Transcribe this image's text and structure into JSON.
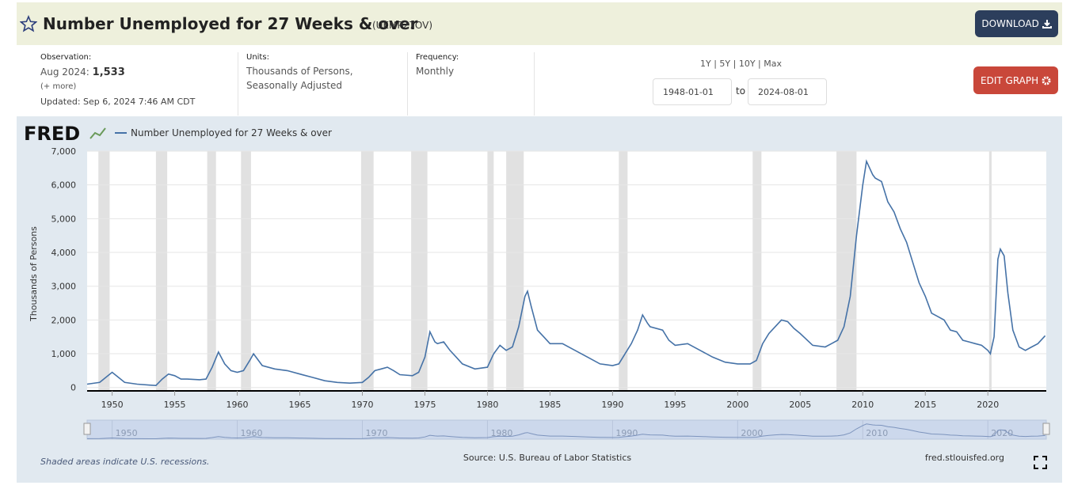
{
  "header": {
    "title": "Number Unemployed for 27 Weeks & over",
    "series_id": "(UEMP27OV)",
    "download": "DOWNLOAD"
  },
  "observation": {
    "label": "Observation:",
    "date": "Aug 2024:",
    "value": "1,533",
    "more": "(+ more)",
    "updated": "Updated: Sep 6, 2024 7:46 AM CDT"
  },
  "units": {
    "label": "Units:",
    "lines": [
      "Thousands of Persons,",
      "Seasonally Adjusted"
    ]
  },
  "frequency": {
    "label": "Frequency:",
    "value": "Monthly"
  },
  "range": {
    "presets": "1Y | 5Y | 10Y | Max",
    "start": "1948-01-01",
    "to": "to",
    "end": "2024-08-01"
  },
  "edit_graph": "EDIT GRAPH",
  "chart_data": {
    "type": "line",
    "logo": "FRED",
    "ylabel": "Thousands of Persons",
    "x": [
      1948,
      1949,
      1949.5,
      1950,
      1950.5,
      1951,
      1952,
      1953,
      1953.5,
      1954,
      1954.5,
      1955,
      1955.5,
      1956,
      1957,
      1957.5,
      1958,
      1958.5,
      1959,
      1959.5,
      1960,
      1960.5,
      1961,
      1961.3,
      1961.7,
      1962,
      1963,
      1964,
      1965,
      1966,
      1967,
      1968,
      1969,
      1970,
      1970.5,
      1971,
      1971.5,
      1972,
      1972.5,
      1973,
      1974,
      1974.5,
      1975,
      1975.4,
      1975.8,
      1976,
      1976.5,
      1977,
      1977.5,
      1978,
      1979,
      1980,
      1980.5,
      1981,
      1981.5,
      1982,
      1982.5,
      1983,
      1983.2,
      1983.5,
      1984,
      1984.5,
      1985,
      1986,
      1987,
      1988,
      1989,
      1990,
      1990.5,
      1991,
      1991.5,
      1992,
      1992.4,
      1992.8,
      1993,
      1994,
      1994.5,
      1995,
      1996,
      1997,
      1998,
      1999,
      2000,
      2001,
      2001.5,
      2002,
      2002.5,
      2003,
      2003.5,
      2004,
      2004.5,
      2005,
      2006,
      2007,
      2007.5,
      2008,
      2008.5,
      2009,
      2009.5,
      2010,
      2010.3,
      2010.8,
      2011,
      2011.5,
      2012,
      2012.5,
      2013,
      2013.5,
      2014,
      2014.5,
      2015,
      2015.5,
      2016,
      2016.5,
      2017,
      2017.5,
      2018,
      2018.5,
      2019,
      2019.5,
      2020,
      2020.2,
      2020.5,
      2020.8,
      2021,
      2021.3,
      2021.6,
      2022,
      2022.5,
      2023,
      2023.5,
      2024,
      2024.58
    ],
    "series": [
      {
        "name": "Number Unemployed for 27 Weeks & over",
        "color": "#4572a7",
        "values": [
          100,
          150,
          300,
          450,
          300,
          150,
          100,
          70,
          60,
          250,
          400,
          350,
          250,
          250,
          230,
          250,
          600,
          1050,
          700,
          500,
          450,
          500,
          800,
          1000,
          800,
          650,
          550,
          500,
          400,
          300,
          200,
          150,
          130,
          150,
          300,
          500,
          550,
          600,
          500,
          380,
          350,
          450,
          900,
          1650,
          1350,
          1300,
          1350,
          1100,
          900,
          700,
          550,
          600,
          1000,
          1250,
          1100,
          1200,
          1800,
          2700,
          2850,
          2400,
          1700,
          1500,
          1300,
          1300,
          1100,
          900,
          700,
          650,
          700,
          1000,
          1300,
          1700,
          2150,
          1900,
          1800,
          1700,
          1400,
          1250,
          1300,
          1100,
          900,
          750,
          700,
          700,
          800,
          1300,
          1600,
          1800,
          2000,
          1950,
          1750,
          1600,
          1250,
          1200,
          1300,
          1400,
          1800,
          2700,
          4500,
          6000,
          6700,
          6300,
          6200,
          6100,
          5500,
          5200,
          4700,
          4300,
          3700,
          3100,
          2700,
          2200,
          2100,
          2000,
          1700,
          1650,
          1400,
          1350,
          1300,
          1250,
          1100,
          1000,
          1500,
          3800,
          4100,
          3900,
          2800,
          1700,
          1200,
          1100,
          1200,
          1300,
          1533
        ]
      }
    ],
    "xlim": [
      1948,
      2024.67
    ],
    "xticks": [
      1950,
      1955,
      1960,
      1965,
      1970,
      1975,
      1980,
      1985,
      1990,
      1995,
      2000,
      2005,
      2010,
      2015,
      2020
    ],
    "ylim": [
      -100,
      7000
    ],
    "yticks": [
      0,
      {
        "value": 1000,
        "label": "1,000"
      },
      {
        "value": 2000,
        "label": "2,000"
      },
      {
        "value": 3000,
        "label": "3,000"
      },
      {
        "value": 4000,
        "label": "4,000"
      },
      {
        "value": 5000,
        "label": "5,000"
      },
      {
        "value": 6000,
        "label": "6,000"
      },
      {
        "value": 7000,
        "label": "7,000"
      }
    ],
    "grid": true,
    "recession_color": "#e1e1e1",
    "recessions": [
      [
        1948.9,
        1949.8
      ],
      [
        1953.5,
        1954.4
      ],
      [
        1957.6,
        1958.3
      ],
      [
        1960.3,
        1961.1
      ],
      [
        1969.9,
        1970.9
      ],
      [
        1973.9,
        1975.2
      ],
      [
        1980.0,
        1980.5
      ],
      [
        1981.5,
        1982.9
      ],
      [
        1990.5,
        1991.2
      ],
      [
        2001.2,
        2001.9
      ],
      [
        2007.9,
        2009.5
      ],
      [
        2020.1,
        2020.3
      ]
    ],
    "navigator_ticks": [
      1950,
      1960,
      1970,
      1980,
      1990,
      2000,
      2010,
      2020
    ],
    "note": "Shaded areas indicate U.S. recessions.",
    "source": "Source: U.S. Bureau of Labor Statistics",
    "credit": "fred.stlouisfed.org"
  }
}
